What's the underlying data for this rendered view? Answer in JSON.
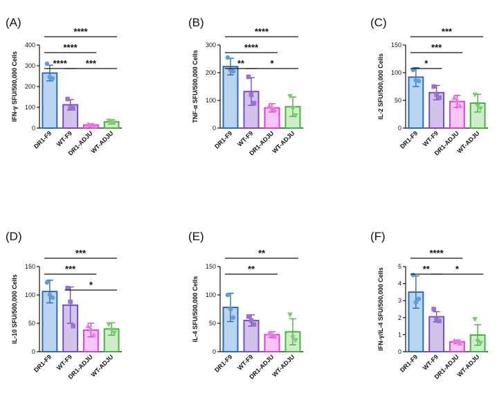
{
  "chart_data": [
    {
      "type": "bar",
      "panel_label": "(A)",
      "ylabel": "IFN-γ SFU/500,000 Cells",
      "ylim": [
        0,
        400
      ],
      "yticks": [
        "0",
        "100",
        "200",
        "300",
        "400"
      ],
      "categories": [
        "DR1-F9",
        "WT-F9",
        "DR1-ADJU",
        "WT-ADJU"
      ],
      "values": [
        265,
        112,
        15,
        30
      ],
      "errors": [
        38,
        25,
        5,
        10
      ],
      "points": [
        [
          310,
          240,
          245
        ],
        [
          140,
          95,
          100
        ],
        [
          18,
          12,
          14
        ],
        [
          35,
          25,
          32
        ]
      ],
      "significance": [
        {
          "from": 0,
          "to": 3,
          "label": "****"
        },
        {
          "from": 0,
          "to": 2,
          "label": "****"
        },
        {
          "from": 0,
          "to": 1,
          "label": "****"
        },
        {
          "from": 1,
          "to": 3,
          "label": "***"
        }
      ]
    },
    {
      "type": "bar",
      "panel_label": "(B)",
      "ylabel": "TNF-α SFU/500,000 Cells",
      "ylim": [
        0,
        300
      ],
      "yticks": [
        "0",
        "100",
        "200",
        "300"
      ],
      "categories": [
        "DR1-F9",
        "WT-F9",
        "DR1-ADJU",
        "WT-ADJU"
      ],
      "values": [
        222,
        132,
        73,
        77
      ],
      "errors": [
        30,
        50,
        15,
        35
      ],
      "points": [
        [
          255,
          205,
          210
        ],
        [
          185,
          90,
          120
        ],
        [
          80,
          68,
          72
        ],
        [
          115,
          45,
          70
        ]
      ],
      "significance": [
        {
          "from": 0,
          "to": 3,
          "label": "****"
        },
        {
          "from": 0,
          "to": 2,
          "label": "****"
        },
        {
          "from": 0,
          "to": 1,
          "label": "**"
        },
        {
          "from": 1,
          "to": 3,
          "label": "*"
        }
      ]
    },
    {
      "type": "bar",
      "panel_label": "(C)",
      "ylabel": "IL-2 SFU/500,000 Cells",
      "ylim": [
        0,
        150
      ],
      "yticks": [
        "0",
        "50",
        "100",
        "150"
      ],
      "categories": [
        "DR1-F9",
        "WT-F9",
        "DR1-ADJU",
        "WT-ADJU"
      ],
      "values": [
        92,
        64,
        48,
        45
      ],
      "errors": [
        17,
        13,
        11,
        16
      ],
      "points": [
        [
          105,
          85,
          86
        ],
        [
          75,
          55,
          60
        ],
        [
          55,
          40,
          50
        ],
        [
          60,
          35,
          40
        ]
      ],
      "significance": [
        {
          "from": 0,
          "to": 3,
          "label": "***"
        },
        {
          "from": 0,
          "to": 2,
          "label": "***"
        },
        {
          "from": 0,
          "to": 1,
          "label": "*"
        }
      ]
    },
    {
      "type": "bar",
      "panel_label": "(D)",
      "ylabel": "IL-10 SFU/500,000 Cells",
      "ylim": [
        0,
        150
      ],
      "yticks": [
        "0",
        "50",
        "100",
        "150"
      ],
      "categories": [
        "DR1-F9",
        "WT-F9",
        "DR1-ADJU",
        "WT-ADJU"
      ],
      "values": [
        106,
        82,
        38,
        40
      ],
      "errors": [
        20,
        32,
        12,
        11
      ],
      "points": [
        [
          122,
          95,
          100
        ],
        [
          112,
          45,
          88
        ],
        [
          45,
          30,
          40
        ],
        [
          48,
          33,
          38
        ]
      ],
      "significance": [
        {
          "from": 0,
          "to": 3,
          "label": "***"
        },
        {
          "from": 0,
          "to": 2,
          "label": "***"
        },
        {
          "from": 1,
          "to": 3,
          "label": "*"
        }
      ]
    },
    {
      "type": "bar",
      "panel_label": "(E)",
      "ylabel": "IL-4 SFU/500,000 Cells",
      "ylim": [
        0,
        150
      ],
      "yticks": [
        "0",
        "50",
        "100",
        "150"
      ],
      "categories": [
        "DR1-F9",
        "WT-F9",
        "DR1-ADJU",
        "WT-ADJU"
      ],
      "values": [
        78,
        55,
        30,
        35
      ],
      "errors": [
        25,
        10,
        5,
        23
      ],
      "points": [
        [
          100,
          60,
          75
        ],
        [
          62,
          48,
          55
        ],
        [
          33,
          27,
          30
        ],
        [
          65,
          20,
          25
        ]
      ],
      "significance": [
        {
          "from": 0,
          "to": 3,
          "label": "**"
        },
        {
          "from": 0,
          "to": 2,
          "label": "**"
        }
      ]
    },
    {
      "type": "bar",
      "panel_label": "(F)",
      "ylabel": "IFN-γ/IL-4 SFU/500,000 Cells",
      "ylim": [
        0,
        5
      ],
      "yticks": [
        "0",
        "1",
        "2",
        "3",
        "4",
        "5"
      ],
      "categories": [
        "DR1-F9",
        "WT-F9",
        "DR1-ADJU",
        "WT-ADJU"
      ],
      "values": [
        3.5,
        2.05,
        0.58,
        0.98
      ],
      "errors": [
        0.95,
        0.3,
        0.1,
        0.6
      ],
      "points": [
        [
          4.5,
          3.1,
          2.9
        ],
        [
          2.5,
          1.8,
          1.9
        ],
        [
          0.65,
          0.5,
          0.6
        ],
        [
          1.9,
          0.5,
          0.6
        ]
      ],
      "significance": [
        {
          "from": 0,
          "to": 2,
          "label": "****"
        },
        {
          "from": 0,
          "to": 1,
          "label": "**"
        },
        {
          "from": 1,
          "to": 3,
          "label": "*"
        }
      ]
    }
  ],
  "colors": {
    "fill": [
      "#b8d4f0",
      "#d3c2ea",
      "#f9c7f5",
      "#cdeec8"
    ],
    "stroke": [
      "#2b6cb8",
      "#7b4cc1",
      "#df3fd6",
      "#45b43a"
    ],
    "point": [
      "#5f9ed8",
      "#9a72cf",
      "#eb78e4",
      "#7ccc6f"
    ]
  }
}
